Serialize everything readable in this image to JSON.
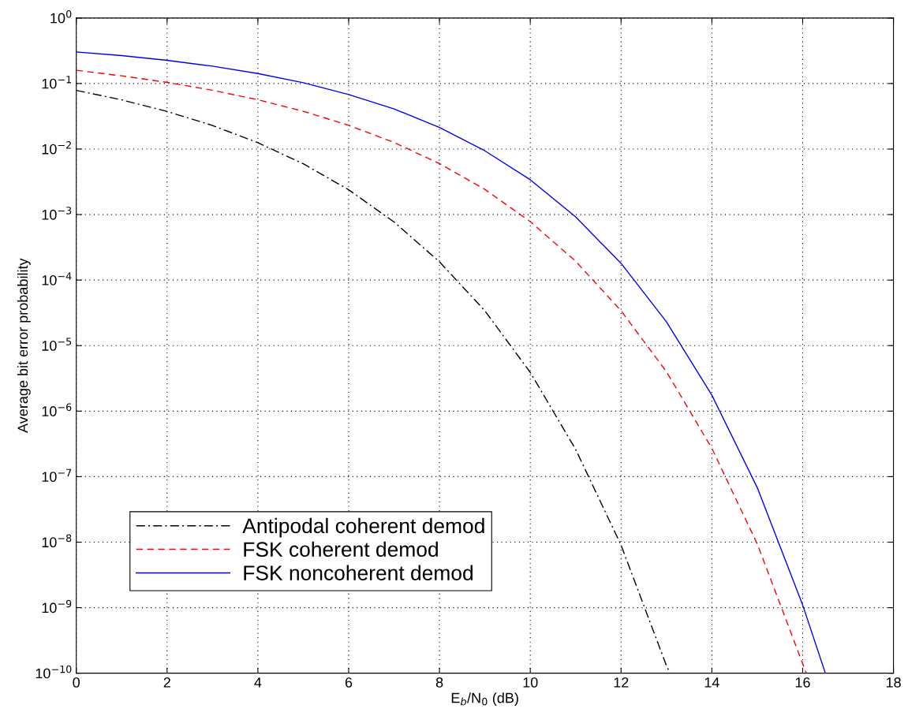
{
  "chart_data": {
    "type": "line",
    "xlabel": "E$_{b}$/N$_{0}$ (dB)",
    "ylabel": "Average bit error probability",
    "log": "y",
    "grid": true,
    "legend": "bottom left",
    "marker": "none",
    "xlim": [
      0,
      18
    ],
    "xticks": [
      0,
      2,
      4,
      6,
      8,
      10,
      12,
      14,
      16,
      18
    ],
    "ylim": [
      1e-10,
      1
    ],
    "yticks": [
      {
        "value": 1e-10,
        "label": "10$^{−10}$"
      },
      {
        "value": 1e-09,
        "label": "10$^{−9}$"
      },
      {
        "value": 1e-08,
        "label": "10$^{−8}$"
      },
      {
        "value": 1e-07,
        "label": "10$^{−7}$"
      },
      {
        "value": 1e-06,
        "label": "10$^{−6}$"
      },
      {
        "value": 1e-05,
        "label": "10$^{−5}$"
      },
      {
        "value": 0.0001,
        "label": "10$^{−4}$"
      },
      {
        "value": 0.001,
        "label": "10$^{−3}$"
      },
      {
        "value": 0.01,
        "label": "10$^{−2}$"
      },
      {
        "value": 0.1,
        "label": "10$^{−1}$"
      },
      {
        "value": 1,
        "label": "10$^{0}$"
      }
    ],
    "series": [
      {
        "name": "Antipodal coherent demod",
        "color": "#000000",
        "line_style": "dashdot",
        "x": [
          0,
          1,
          2,
          3,
          4,
          5,
          6,
          7,
          8,
          9,
          10,
          11,
          12,
          13,
          13.08
        ],
        "values": [
          0.0786,
          0.0563,
          0.0375,
          0.0229,
          0.0125,
          0.00595,
          0.00239,
          0.00077,
          0.00019,
          3.4e-05,
          3.9e-06,
          2.6e-07,
          9e-09,
          1.3e-10,
          1e-10
        ]
      },
      {
        "name": "FSK coherent demod",
        "color": "#ff0000",
        "line_style": "dashed",
        "x": [
          0,
          1,
          2,
          3,
          4,
          5,
          6,
          7,
          8,
          9,
          10,
          11,
          12,
          13,
          14,
          15,
          16,
          16.08
        ],
        "values": [
          0.159,
          0.131,
          0.104,
          0.079,
          0.0565,
          0.0377,
          0.023,
          0.0126,
          0.006,
          0.00242,
          0.00078,
          0.000194,
          3.4e-05,
          4e-06,
          2.7e-07,
          9.4e-09,
          1.4e-10,
          1e-10
        ]
      },
      {
        "name": "FSK noncoherent demod",
        "color": "#0000ff",
        "line_style": "solid",
        "x": [
          0,
          1,
          2,
          3,
          4,
          5,
          6,
          7,
          8,
          9,
          10,
          11,
          12,
          13,
          14,
          15,
          16,
          16.5
        ],
        "values": [
          0.303,
          0.267,
          0.226,
          0.184,
          0.142,
          0.103,
          0.068,
          0.041,
          0.0213,
          0.0094,
          0.0034,
          0.00092,
          0.00018,
          2.3e-05,
          1.75e-06,
          6.8e-08,
          1.1e-09,
          1e-10
        ]
      }
    ]
  }
}
